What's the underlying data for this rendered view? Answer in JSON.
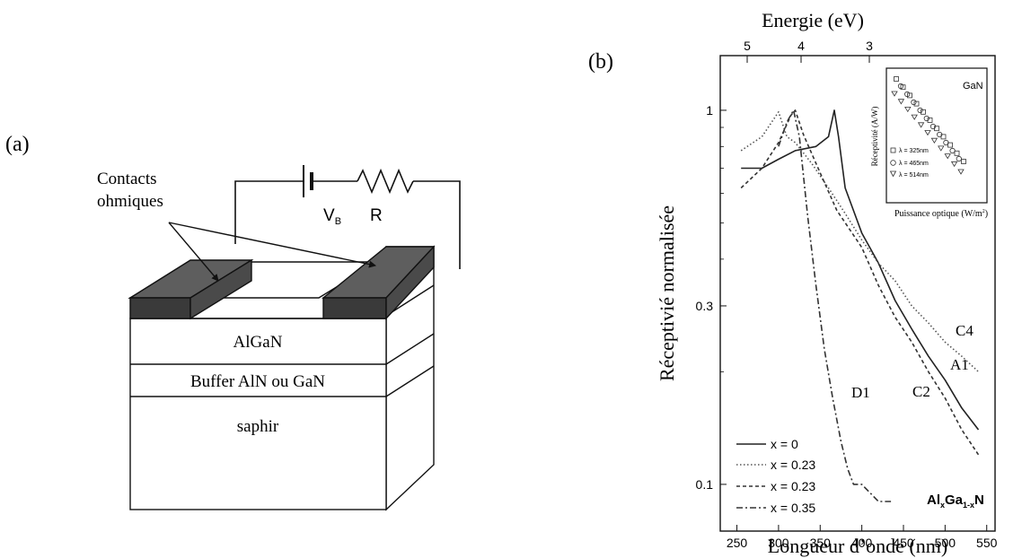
{
  "panel_a": {
    "label": "(a)",
    "contacts_label_line1": "Contacts",
    "contacts_label_line2": "ohmiques",
    "vb_label": "V",
    "vb_sub": "B",
    "r_label": "R",
    "layers": [
      "AlGaN",
      "Buffer AlN ou GaN",
      "saphir"
    ]
  },
  "panel_b": {
    "label": "(b)",
    "top_axis_title": "Energie (eV)",
    "top_ticks": [
      "5",
      "4",
      "3"
    ],
    "ylabel": "Réceptivié normalisée",
    "xlabel": "Longueur d’onde (nm)",
    "x_ticks": [
      "250",
      "300",
      "350",
      "400",
      "450",
      "500",
      "550"
    ],
    "y_ticks": [
      "1",
      "0.3",
      "0.1"
    ],
    "curve_labels": [
      "C4",
      "A1",
      "C2",
      "D1"
    ],
    "legend": [
      "x = 0",
      "x = 0.23",
      "x = 0.23",
      "x = 0.35"
    ],
    "formula": "Al",
    "formula_sub_x": "x",
    "formula_mid": "Ga",
    "formula_sub_1x": "1-x",
    "formula_end": "N",
    "inset": {
      "title": "GaN",
      "ylabel": "Réceptivité (A/W)",
      "xlabel": "Puissance optique (W/m",
      "xlabel_sup": "2",
      "xlabel_end": ")",
      "legend": [
        "λ = 325nm",
        "λ = 465nm",
        "λ = 514nm"
      ]
    }
  },
  "chart_data": {
    "type": "line",
    "xlabel": "Longueur d’onde (nm)",
    "ylabel": "Réceptivié normalisée",
    "xlim": [
      230,
      560
    ],
    "ylim": [
      0.075,
      1.4
    ],
    "y_scale": "log",
    "series": [
      {
        "name": "x = 0",
        "label": "A1",
        "style": "solid",
        "x": [
          255,
          280,
          300,
          320,
          345,
          360,
          367,
          372,
          380,
          400,
          420,
          440,
          460,
          480,
          500,
          520,
          540
        ],
        "y": [
          0.7,
          0.7,
          0.74,
          0.78,
          0.8,
          0.85,
          1.0,
          0.85,
          0.62,
          0.47,
          0.39,
          0.31,
          0.26,
          0.22,
          0.19,
          0.16,
          0.14
        ]
      },
      {
        "name": "x = 0.23",
        "label": "C4",
        "style": "dotted",
        "x": [
          255,
          280,
          300,
          310,
          320,
          340,
          360,
          380,
          400,
          420,
          440,
          460,
          480,
          500,
          520,
          540
        ],
        "y": [
          0.78,
          0.85,
          0.99,
          0.85,
          0.82,
          0.72,
          0.62,
          0.53,
          0.45,
          0.39,
          0.35,
          0.3,
          0.27,
          0.24,
          0.22,
          0.2
        ]
      },
      {
        "name": "x = 0.23",
        "label": "C2",
        "style": "dashed",
        "x": [
          255,
          280,
          300,
          315,
          320,
          330,
          350,
          370,
          400,
          420,
          440,
          460,
          480,
          500,
          520,
          540
        ],
        "y": [
          0.62,
          0.7,
          0.82,
          0.97,
          1.0,
          0.86,
          0.68,
          0.54,
          0.43,
          0.34,
          0.28,
          0.24,
          0.2,
          0.17,
          0.14,
          0.12
        ]
      },
      {
        "name": "x = 0.35",
        "label": "D1",
        "style": "dashdot",
        "x": [
          300,
          310,
          318,
          325,
          335,
          345,
          355,
          365,
          375,
          383,
          390,
          400,
          420,
          435
        ],
        "y": [
          0.8,
          0.93,
          1.0,
          0.85,
          0.52,
          0.34,
          0.23,
          0.17,
          0.13,
          0.11,
          0.1,
          0.1,
          0.09,
          0.09
        ]
      }
    ]
  }
}
